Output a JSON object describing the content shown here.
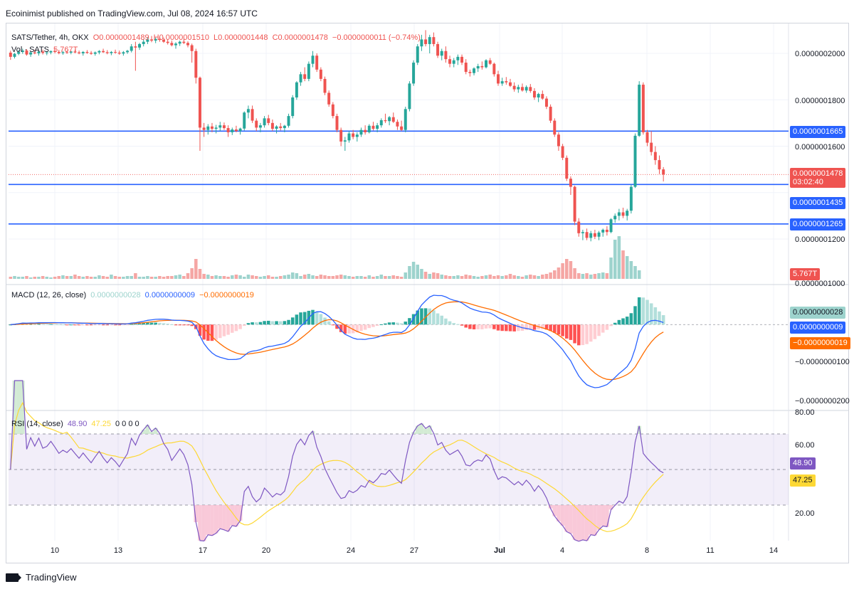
{
  "header": {
    "published": "Ecoinimist published on TradingView.com, Jul 08, 2024 16:57 UTC"
  },
  "legend": {
    "symbol": "SATS/Tether, 4h, OKX",
    "o": "O0.0000001489",
    "h": "H0.0000001510",
    "l": "L0.0000001448",
    "c": "C0.0000001478",
    "chg": "−0.0000000011 (−0.74%)",
    "vol_label": "Vol · SATS",
    "vol_value": "5.767T",
    "macd_label": "MACD (12, 26, close)",
    "macd_hist": "0.0000000028",
    "macd_line": "0.0000000009",
    "macd_signal": "−0.0000000019",
    "rsi_label": "RSI (14, close)",
    "rsi_value": "48.90",
    "rsi_ma": "47.25",
    "rsi_extra": "0 0 0 0"
  },
  "price_axis": {
    "labels": [
      "0.0000002000",
      "0.0000001800",
      "0.0000001600",
      "0.0000001200",
      "0.0000001000"
    ]
  },
  "tags": {
    "level1": "0.0000001665",
    "price": "0.0000001478",
    "countdown": "03:02:40",
    "level2": "0.0000001435",
    "level3": "0.0000001265",
    "vol": "5.767T",
    "macd_hist": "0.0000000028",
    "macd_line": "0.0000000009",
    "macd_signal": "−0.0000000019",
    "rsi": "48.90",
    "rsi_ma": "47.25"
  },
  "macd_axis": {
    "labels": [
      "−0.0000000100",
      "−0.0000000200"
    ]
  },
  "rsi_axis": {
    "labels": [
      "80.00",
      "60.00",
      "20.00"
    ]
  },
  "x_axis": {
    "labels": [
      "10",
      "13",
      "17",
      "20",
      "24",
      "27",
      "Jul",
      "4",
      "8",
      "11",
      "14"
    ]
  },
  "brand": {
    "name": "TradingView"
  },
  "colors": {
    "up": "#26a69a",
    "down": "#ef5350",
    "level": "#2962ff",
    "macd": "#2962ff",
    "signal": "#ff6d00",
    "rsi": "#7e57c2",
    "rsima": "#fdd835"
  },
  "chart_data": {
    "type": "candlestick",
    "title": "SATS/Tether, 4h, OKX",
    "candles": [
      [
        2003,
        2012,
        1972,
        1985
      ],
      [
        1985,
        2002,
        1978,
        1998
      ],
      [
        1998,
        2015,
        1992,
        2006
      ],
      [
        2006,
        2020,
        1998,
        2012
      ],
      [
        2012,
        2018,
        1990,
        1995
      ],
      [
        1995,
        2008,
        1985,
        2004
      ],
      [
        2004,
        2015,
        1996,
        2000
      ],
      [
        2000,
        2012,
        1990,
        2008
      ],
      [
        2008,
        2016,
        1995,
        2002
      ],
      [
        2002,
        2010,
        1992,
        2004
      ],
      [
        2004,
        2012,
        1996,
        2010
      ],
      [
        2010,
        2020,
        2000,
        2006
      ],
      [
        2006,
        2015,
        1996,
        2001
      ],
      [
        2001,
        2010,
        1994,
        2005
      ],
      [
        2005,
        2012,
        1998,
        2003
      ],
      [
        2003,
        2010,
        1996,
        2008
      ],
      [
        2008,
        2016,
        2000,
        2004
      ],
      [
        2004,
        2012,
        1996,
        2000
      ],
      [
        2000,
        2010,
        1990,
        2006
      ],
      [
        2006,
        2014,
        1998,
        2002
      ],
      [
        2002,
        2010,
        1994,
        1998
      ],
      [
        1998,
        2008,
        1990,
        2004
      ],
      [
        2004,
        2014,
        1996,
        2010
      ],
      [
        2010,
        2020,
        2002,
        2005
      ],
      [
        2005,
        2014,
        1996,
        2001
      ],
      [
        2001,
        2010,
        1992,
        2006
      ],
      [
        2006,
        2016,
        1998,
        2003
      ],
      [
        2003,
        2012,
        1994,
        1999
      ],
      [
        1999,
        2010,
        1990,
        2005
      ],
      [
        2005,
        2015,
        1998,
        2011
      ],
      [
        2011,
        2040,
        2004,
        2030
      ],
      [
        2030,
        2050,
        1925,
        2025
      ],
      [
        2025,
        2045,
        2015,
        2040
      ],
      [
        2040,
        2060,
        2030,
        2050
      ],
      [
        2050,
        2070,
        2040,
        2060
      ],
      [
        2060,
        2075,
        2048,
        2055
      ],
      [
        2055,
        2068,
        2044,
        2062
      ],
      [
        2062,
        2072,
        2050,
        2058
      ],
      [
        2058,
        2068,
        2045,
        2050
      ],
      [
        2050,
        2060,
        2038,
        2045
      ],
      [
        2045,
        2055,
        2030,
        2035
      ],
      [
        2035,
        2048,
        2020,
        2042
      ],
      [
        2042,
        2055,
        2032,
        2050
      ],
      [
        2050,
        2062,
        2040,
        2045
      ],
      [
        2045,
        2052,
        2026,
        2035
      ],
      [
        2035,
        2042,
        1960,
        2010
      ],
      [
        2010,
        2020,
        1870,
        1895
      ],
      [
        1895,
        1900,
        1580,
        1680
      ],
      [
        1680,
        1700,
        1640,
        1670
      ],
      [
        1670,
        1695,
        1650,
        1685
      ],
      [
        1685,
        1700,
        1660,
        1675
      ],
      [
        1675,
        1692,
        1655,
        1680
      ],
      [
        1680,
        1705,
        1665,
        1690
      ],
      [
        1690,
        1702,
        1670,
        1678
      ],
      [
        1678,
        1690,
        1640,
        1660
      ],
      [
        1660,
        1680,
        1648,
        1672
      ],
      [
        1672,
        1688,
        1660,
        1665
      ],
      [
        1665,
        1680,
        1650,
        1676
      ],
      [
        1676,
        1750,
        1668,
        1745
      ],
      [
        1745,
        1775,
        1720,
        1760
      ],
      [
        1760,
        1775,
        1700,
        1710
      ],
      [
        1710,
        1720,
        1665,
        1680
      ],
      [
        1680,
        1700,
        1660,
        1690
      ],
      [
        1690,
        1730,
        1680,
        1720
      ],
      [
        1720,
        1735,
        1690,
        1700
      ],
      [
        1700,
        1715,
        1665,
        1675
      ],
      [
        1675,
        1690,
        1655,
        1685
      ],
      [
        1685,
        1700,
        1668,
        1678
      ],
      [
        1678,
        1692,
        1660,
        1688
      ],
      [
        1688,
        1740,
        1680,
        1730
      ],
      [
        1730,
        1820,
        1720,
        1810
      ],
      [
        1810,
        1880,
        1800,
        1875
      ],
      [
        1875,
        1920,
        1860,
        1910
      ],
      [
        1910,
        1940,
        1880,
        1890
      ],
      [
        1890,
        1965,
        1880,
        1955
      ],
      [
        1955,
        2010,
        1940,
        1990
      ],
      [
        1990,
        2000,
        1920,
        1930
      ],
      [
        1930,
        1940,
        1880,
        1890
      ],
      [
        1890,
        1900,
        1820,
        1830
      ],
      [
        1830,
        1840,
        1770,
        1780
      ],
      [
        1780,
        1790,
        1720,
        1730
      ],
      [
        1730,
        1740,
        1660,
        1670
      ],
      [
        1670,
        1680,
        1600,
        1620
      ],
      [
        1620,
        1640,
        1580,
        1625
      ],
      [
        1625,
        1665,
        1615,
        1655
      ],
      [
        1655,
        1670,
        1630,
        1640
      ],
      [
        1640,
        1660,
        1620,
        1650
      ],
      [
        1650,
        1680,
        1640,
        1670
      ],
      [
        1670,
        1690,
        1650,
        1660
      ],
      [
        1660,
        1695,
        1655,
        1688
      ],
      [
        1688,
        1705,
        1668,
        1675
      ],
      [
        1675,
        1700,
        1660,
        1690
      ],
      [
        1690,
        1720,
        1680,
        1712
      ],
      [
        1712,
        1740,
        1700,
        1708
      ],
      [
        1708,
        1730,
        1690,
        1725
      ],
      [
        1725,
        1745,
        1700,
        1705
      ],
      [
        1705,
        1715,
        1670,
        1685
      ],
      [
        1685,
        1710,
        1665,
        1670
      ],
      [
        1670,
        1770,
        1660,
        1760
      ],
      [
        1760,
        1880,
        1750,
        1870
      ],
      [
        1870,
        1970,
        1860,
        1960
      ],
      [
        1960,
        2040,
        1950,
        2030
      ],
      [
        2030,
        2080,
        2010,
        2060
      ],
      [
        2060,
        2100,
        2030,
        2040
      ],
      [
        2040,
        2080,
        2000,
        2070
      ],
      [
        2070,
        2090,
        2030,
        2040
      ],
      [
        2040,
        2050,
        1980,
        1990
      ],
      [
        1990,
        2020,
        1970,
        2010
      ],
      [
        2010,
        2030,
        1960,
        1975
      ],
      [
        1975,
        1990,
        1940,
        1955
      ],
      [
        1955,
        1980,
        1940,
        1970
      ],
      [
        1970,
        1995,
        1950,
        1985
      ],
      [
        1985,
        1995,
        1950,
        1960
      ],
      [
        1960,
        1975,
        1910,
        1920
      ],
      [
        1920,
        1930,
        1900,
        1915
      ],
      [
        1915,
        1940,
        1905,
        1935
      ],
      [
        1935,
        1955,
        1920,
        1945
      ],
      [
        1945,
        1965,
        1930,
        1940
      ],
      [
        1940,
        1975,
        1935,
        1970
      ],
      [
        1970,
        1980,
        1950,
        1955
      ],
      [
        1955,
        1960,
        1900,
        1910
      ],
      [
        1910,
        1925,
        1860,
        1870
      ],
      [
        1870,
        1895,
        1860,
        1880
      ],
      [
        1880,
        1898,
        1865,
        1875
      ],
      [
        1875,
        1890,
        1855,
        1860
      ],
      [
        1860,
        1875,
        1835,
        1845
      ],
      [
        1845,
        1865,
        1830,
        1855
      ],
      [
        1855,
        1870,
        1835,
        1840
      ],
      [
        1840,
        1862,
        1830,
        1855
      ],
      [
        1855,
        1868,
        1830,
        1838
      ],
      [
        1838,
        1850,
        1800,
        1810
      ],
      [
        1810,
        1830,
        1790,
        1825
      ],
      [
        1825,
        1840,
        1800,
        1805
      ],
      [
        1805,
        1815,
        1760,
        1770
      ],
      [
        1770,
        1780,
        1700,
        1710
      ],
      [
        1710,
        1720,
        1640,
        1650
      ],
      [
        1650,
        1660,
        1580,
        1600
      ],
      [
        1600,
        1610,
        1540,
        1550
      ],
      [
        1550,
        1560,
        1450,
        1460
      ],
      [
        1460,
        1470,
        1390,
        1425
      ],
      [
        1425,
        1430,
        1260,
        1275
      ],
      [
        1275,
        1290,
        1210,
        1225
      ],
      [
        1225,
        1240,
        1195,
        1230
      ],
      [
        1230,
        1245,
        1195,
        1205
      ],
      [
        1205,
        1235,
        1190,
        1225
      ],
      [
        1225,
        1240,
        1200,
        1210
      ],
      [
        1210,
        1235,
        1195,
        1228
      ],
      [
        1228,
        1245,
        1210,
        1240
      ],
      [
        1240,
        1255,
        1215,
        1230
      ],
      [
        1230,
        1290,
        1225,
        1285
      ],
      [
        1285,
        1310,
        1270,
        1300
      ],
      [
        1300,
        1330,
        1280,
        1315
      ],
      [
        1315,
        1335,
        1290,
        1300
      ],
      [
        1300,
        1330,
        1280,
        1322
      ],
      [
        1322,
        1435,
        1310,
        1425
      ],
      [
        1425,
        1655,
        1420,
        1645
      ],
      [
        1645,
        1880,
        1640,
        1865
      ],
      [
        1865,
        1875,
        1650,
        1660
      ],
      [
        1660,
        1670,
        1600,
        1615
      ],
      [
        1615,
        1665,
        1560,
        1575
      ],
      [
        1575,
        1600,
        1520,
        1540
      ],
      [
        1540,
        1560,
        1480,
        1500
      ],
      [
        1500,
        1510,
        1448,
        1478
      ]
    ],
    "volume": [
      3,
      4,
      3,
      3,
      4,
      2,
      3,
      3,
      4,
      3,
      2,
      3,
      4,
      5,
      4,
      4,
      6,
      4,
      3,
      4,
      3,
      3,
      5,
      4,
      3,
      6,
      4,
      3,
      3,
      4,
      4,
      8,
      3,
      3,
      4,
      3,
      3,
      4,
      3,
      4,
      4,
      5,
      6,
      4,
      8,
      15,
      28,
      14,
      7,
      6,
      4,
      5,
      4,
      4,
      3,
      5,
      6,
      5,
      3,
      6,
      5,
      4,
      3,
      4,
      5,
      3,
      3,
      4,
      5,
      6,
      9,
      8,
      4,
      6,
      7,
      5,
      4,
      6,
      5,
      4,
      4,
      5,
      6,
      5,
      4,
      3,
      4,
      4,
      3,
      5,
      3,
      4,
      6,
      4,
      4,
      5,
      4,
      3,
      9,
      18,
      24,
      20,
      14,
      10,
      7,
      9,
      8,
      6,
      5,
      4,
      4,
      5,
      4,
      6,
      5,
      4,
      3,
      4,
      5,
      6,
      4,
      5,
      4,
      5,
      7,
      5,
      4,
      3,
      5,
      6,
      5,
      4,
      6,
      7,
      9,
      12,
      16,
      22,
      28,
      25,
      15,
      8,
      7,
      8,
      6,
      7,
      8,
      9,
      8,
      30,
      55,
      60,
      40,
      32,
      25,
      18,
      12
    ],
    "levels": [
      1665,
      1435,
      1265
    ],
    "macd_range": [
      -220,
      35
    ],
    "rsi_range": [
      10,
      82
    ],
    "rsi_bands": [
      70,
      30
    ]
  }
}
